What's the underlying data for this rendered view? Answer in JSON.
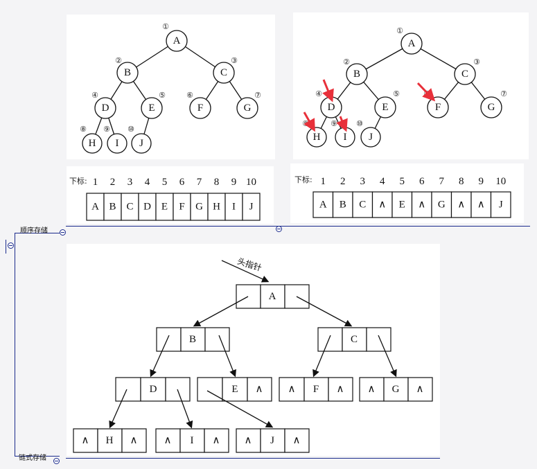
{
  "mindmap": {
    "branch_sequential": "顺序存储",
    "branch_linked": "链式存储"
  },
  "full_tree": {
    "nodes": [
      {
        "label": "A",
        "num": "①"
      },
      {
        "label": "B",
        "num": "②"
      },
      {
        "label": "C",
        "num": "③"
      },
      {
        "label": "D",
        "num": "④"
      },
      {
        "label": "E",
        "num": "⑤"
      },
      {
        "label": "F",
        "num": "⑥"
      },
      {
        "label": "G",
        "num": "⑦"
      },
      {
        "label": "H",
        "num": "⑧"
      },
      {
        "label": "I",
        "num": "⑨"
      },
      {
        "label": "J",
        "num": "⑩"
      }
    ]
  },
  "array_left": {
    "index_label": "下标:",
    "indices": [
      "1",
      "2",
      "3",
      "4",
      "5",
      "6",
      "7",
      "8",
      "9",
      "10"
    ],
    "cells": [
      "A",
      "B",
      "C",
      "D",
      "E",
      "F",
      "G",
      "H",
      "I",
      "J"
    ]
  },
  "array_right": {
    "index_label": "下标:",
    "indices": [
      "1",
      "2",
      "3",
      "4",
      "5",
      "6",
      "7",
      "8",
      "9",
      "10"
    ],
    "cells": [
      "A",
      "B",
      "C",
      "∧",
      "E",
      "∧",
      "G",
      "∧",
      "∧",
      "J"
    ]
  },
  "linked": {
    "head_label": "头指针",
    "null_symbol": "∧",
    "nodes": [
      "A",
      "B",
      "C",
      "D",
      "E",
      "F",
      "G",
      "H",
      "I",
      "J"
    ]
  },
  "colors": {
    "line": "#1a2a8c",
    "arrow_red": "#e8303a"
  }
}
